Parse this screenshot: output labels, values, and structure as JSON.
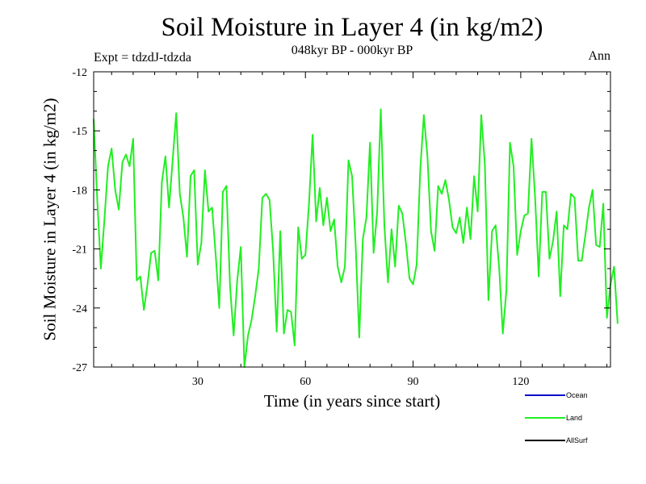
{
  "chart_data": {
    "type": "line",
    "title": "Soil Moisture in Layer 4 (in kg/m2)",
    "subtitle": "048kyr BP - 000kyr BP",
    "experiment": "Expt = tdzdJ-tdzda",
    "period": "Ann",
    "xlabel": "Time (in years since start)",
    "ylabel": "Soil Moisture in Layer 4 (in kg/m2)",
    "xlim": [
      1,
      145
    ],
    "ylim": [
      -27,
      -12
    ],
    "x_ticks": [
      30,
      60,
      90,
      120
    ],
    "y_ticks": [
      -27,
      -24,
      -21,
      -18,
      -15,
      -12
    ],
    "legend": [
      {
        "name": "Ocean",
        "color": "#0000cc"
      },
      {
        "name": "Land",
        "color": "#22ee22"
      },
      {
        "name": "AllSurf",
        "color": "#000000"
      }
    ],
    "series": [
      {
        "name": "Land",
        "color": "#22ee22",
        "x_start": 1,
        "x_step": 1,
        "values": [
          -14.4,
          -18.5,
          -22.0,
          -19.5,
          -16.8,
          -15.9,
          -18.0,
          -19.0,
          -16.6,
          -16.2,
          -16.8,
          -15.4,
          -22.6,
          -22.4,
          -24.1,
          -22.8,
          -21.2,
          -21.1,
          -22.6,
          -17.6,
          -16.3,
          -18.9,
          -16.5,
          -14.1,
          -18.2,
          -19.4,
          -21.4,
          -17.3,
          -17.0,
          -21.8,
          -20.7,
          -17.0,
          -19.1,
          -18.9,
          -21.3,
          -24.0,
          -18.1,
          -17.8,
          -22.9,
          -25.4,
          -22.6,
          -20.9,
          -27.0,
          -25.4,
          -24.6,
          -23.4,
          -22.0,
          -18.4,
          -18.2,
          -18.5,
          -21.1,
          -25.2,
          -20.1,
          -25.3,
          -24.1,
          -24.2,
          -25.9,
          -19.9,
          -21.5,
          -21.3,
          -18.7,
          -15.2,
          -19.6,
          -17.9,
          -19.8,
          -18.4,
          -20.1,
          -19.5,
          -21.9,
          -22.7,
          -21.9,
          -16.5,
          -17.3,
          -20.8,
          -25.5,
          -20.5,
          -19.4,
          -15.6,
          -21.2,
          -19.1,
          -13.9,
          -19.8,
          -22.7,
          -20.0,
          -21.9,
          -18.8,
          -19.2,
          -20.7,
          -22.5,
          -22.8,
          -21.8,
          -17.0,
          -14.2,
          -16.3,
          -20.1,
          -21.1,
          -17.8,
          -18.2,
          -17.5,
          -18.5,
          -19.9,
          -20.2,
          -19.4,
          -20.7,
          -18.9,
          -20.5,
          -17.3,
          -19.1,
          -14.2,
          -16.7,
          -23.6,
          -20.1,
          -19.8,
          -22.0,
          -25.3,
          -23.1,
          -15.6,
          -16.8,
          -21.3,
          -20.1,
          -19.3,
          -19.2,
          -15.4,
          -18.4,
          -22.4,
          -18.1,
          -18.1,
          -21.5,
          -20.6,
          -19.1,
          -23.4,
          -19.8,
          -20.0,
          -18.2,
          -18.4,
          -21.6,
          -21.6,
          -20.3,
          -18.9,
          -18.0,
          -20.8,
          -20.9,
          -18.7,
          -24.5,
          -22.8,
          -21.9,
          -24.8
        ]
      }
    ]
  }
}
